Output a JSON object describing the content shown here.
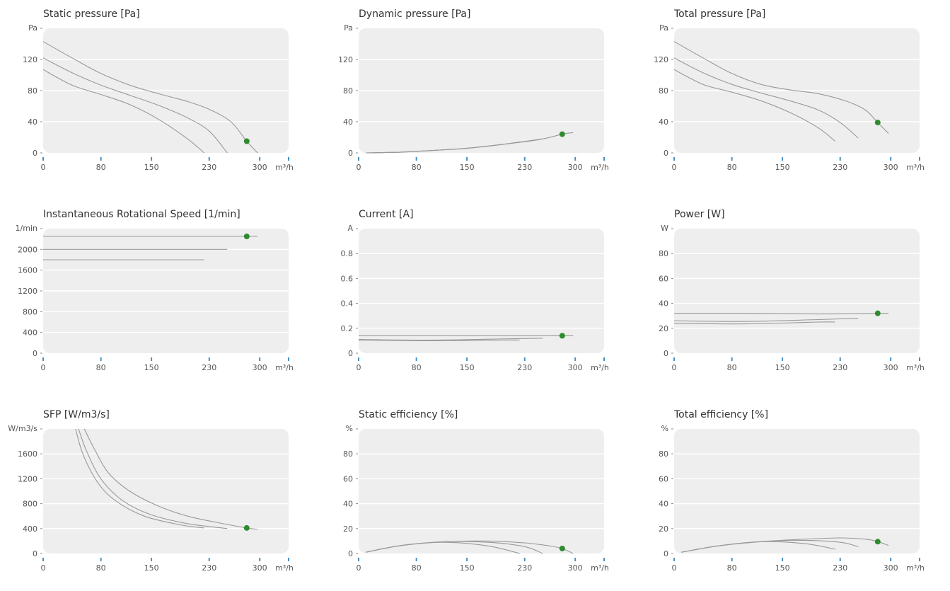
{
  "colors": {
    "plot_bg": "#eeeeee",
    "grid": "#ffffff",
    "curve": "#999999",
    "point": "#2e8b2e",
    "tick_mark": "#4a90c2"
  },
  "x_axis": {
    "ticks": [
      "0",
      "80",
      "150",
      "230",
      "300"
    ],
    "tick_values": [
      0,
      80,
      150,
      230,
      300
    ],
    "unit": "m³/h",
    "range": [
      0,
      340
    ]
  },
  "chart_data": [
    {
      "type": "line",
      "title": "Static pressure [Pa]",
      "y_unit": "Pa",
      "y_ticks": [
        "0",
        "40",
        "80",
        "120"
      ],
      "y_tick_values": [
        0,
        40,
        80,
        120
      ],
      "ylim": [
        0,
        160
      ],
      "series": [
        {
          "x": [
            0,
            40,
            80,
            120,
            160,
            200,
            230,
            260,
            282,
            297
          ],
          "y": [
            143,
            122,
            102,
            87,
            76,
            66,
            56,
            40,
            15,
            0
          ]
        },
        {
          "x": [
            0,
            40,
            80,
            120,
            160,
            200,
            230,
            255
          ],
          "y": [
            122,
            103,
            87,
            74,
            61,
            45,
            28,
            0
          ]
        },
        {
          "x": [
            0,
            40,
            80,
            120,
            160,
            200,
            223
          ],
          "y": [
            107,
            87,
            75,
            62,
            43,
            18,
            0
          ]
        }
      ],
      "operating_point": {
        "x": 282,
        "y": 15
      }
    },
    {
      "type": "line",
      "title": "Dynamic pressure [Pa]",
      "y_unit": "Pa",
      "y_ticks": [
        "0",
        "40",
        "80",
        "120"
      ],
      "y_tick_values": [
        0,
        40,
        80,
        120
      ],
      "ylim": [
        0,
        160
      ],
      "series": [
        {
          "x": [
            10,
            60,
            100,
            150,
            200,
            250,
            282,
            297
          ],
          "y": [
            0,
            1,
            3,
            6,
            11,
            17,
            24,
            26
          ]
        },
        {
          "x": [
            10,
            60,
            100,
            150,
            200,
            255
          ],
          "y": [
            0,
            1,
            3,
            6,
            11,
            18
          ]
        },
        {
          "x": [
            10,
            60,
            100,
            150,
            200,
            223
          ],
          "y": [
            0,
            1,
            3,
            6,
            11,
            14
          ]
        }
      ],
      "operating_point": {
        "x": 282,
        "y": 24
      }
    },
    {
      "type": "line",
      "title": "Total pressure [Pa]",
      "y_unit": "Pa",
      "y_ticks": [
        "0",
        "40",
        "80",
        "120"
      ],
      "y_tick_values": [
        0,
        40,
        80,
        120
      ],
      "ylim": [
        0,
        160
      ],
      "series": [
        {
          "x": [
            0,
            40,
            80,
            120,
            160,
            200,
            240,
            265,
            282,
            297
          ],
          "y": [
            143,
            122,
            102,
            88,
            81,
            76,
            66,
            55,
            39,
            25
          ]
        },
        {
          "x": [
            0,
            40,
            80,
            120,
            160,
            200,
            230,
            255
          ],
          "y": [
            122,
            103,
            88,
            77,
            67,
            55,
            39,
            19
          ]
        },
        {
          "x": [
            0,
            40,
            80,
            120,
            160,
            200,
            223
          ],
          "y": [
            107,
            88,
            78,
            67,
            52,
            32,
            15
          ]
        }
      ],
      "operating_point": {
        "x": 282,
        "y": 39
      }
    },
    {
      "type": "line",
      "title": "Instantaneous Rotational Speed [1/min]",
      "y_unit": "1/min",
      "y_ticks": [
        "0",
        "400",
        "800",
        "1200",
        "1600",
        "2000"
      ],
      "y_tick_values": [
        0,
        400,
        800,
        1200,
        1600,
        2000
      ],
      "ylim": [
        0,
        2400
      ],
      "series": [
        {
          "x": [
            0,
            297
          ],
          "y": [
            2250,
            2250
          ]
        },
        {
          "x": [
            0,
            255
          ],
          "y": [
            2000,
            2000
          ]
        },
        {
          "x": [
            0,
            223
          ],
          "y": [
            1800,
            1800
          ]
        }
      ],
      "operating_point": {
        "x": 282,
        "y": 2250
      }
    },
    {
      "type": "line",
      "title": "Current [A]",
      "y_unit": "A",
      "y_ticks": [
        "0",
        "0.2",
        "0.4",
        "0.6",
        "0.8"
      ],
      "y_tick_values": [
        0,
        0.2,
        0.4,
        0.6,
        0.8
      ],
      "ylim": [
        0,
        1.0
      ],
      "series": [
        {
          "x": [
            0,
            100,
            200,
            297
          ],
          "y": [
            0.14,
            0.14,
            0.14,
            0.14
          ]
        },
        {
          "x": [
            0,
            100,
            200,
            255
          ],
          "y": [
            0.11,
            0.105,
            0.115,
            0.12
          ]
        },
        {
          "x": [
            0,
            100,
            200,
            223
          ],
          "y": [
            0.105,
            0.1,
            0.105,
            0.105
          ]
        }
      ],
      "operating_point": {
        "x": 282,
        "y": 0.14
      }
    },
    {
      "type": "line",
      "title": "Power [W]",
      "y_unit": "W",
      "y_ticks": [
        "0",
        "20",
        "40",
        "60",
        "80"
      ],
      "y_tick_values": [
        0,
        20,
        40,
        60,
        80
      ],
      "ylim": [
        0,
        100
      ],
      "series": [
        {
          "x": [
            0,
            100,
            200,
            297
          ],
          "y": [
            32,
            32,
            31.5,
            32
          ]
        },
        {
          "x": [
            0,
            100,
            200,
            255
          ],
          "y": [
            26,
            25.5,
            27,
            28
          ]
        },
        {
          "x": [
            0,
            100,
            200,
            223
          ],
          "y": [
            24,
            23.5,
            25,
            25
          ]
        }
      ],
      "operating_point": {
        "x": 282,
        "y": 32
      }
    },
    {
      "type": "line",
      "title": "SFP [W/m3/s]",
      "y_unit": "W/m3/s",
      "y_ticks": [
        "0",
        "400",
        "800",
        "1200",
        "1600"
      ],
      "y_tick_values": [
        0,
        400,
        800,
        1200,
        1600
      ],
      "ylim": [
        0,
        2000
      ],
      "series": [
        {
          "x": [
            57,
            70,
            90,
            120,
            160,
            200,
            240,
            282,
            297
          ],
          "y": [
            2000,
            1700,
            1300,
            1000,
            760,
            600,
            500,
            410,
            390
          ]
        },
        {
          "x": [
            49,
            60,
            80,
            110,
            150,
            200,
            255
          ],
          "y": [
            2000,
            1650,
            1200,
            850,
            620,
            480,
            400
          ]
        },
        {
          "x": [
            45,
            55,
            75,
            100,
            140,
            190,
            223
          ],
          "y": [
            2000,
            1600,
            1150,
            850,
            600,
            460,
            410
          ]
        }
      ],
      "operating_point": {
        "x": 282,
        "y": 410
      }
    },
    {
      "type": "line",
      "title": "Static efficiency [%]",
      "y_unit": "%",
      "y_ticks": [
        "0",
        "20",
        "40",
        "60",
        "80"
      ],
      "y_tick_values": [
        0,
        20,
        40,
        60,
        80
      ],
      "ylim": [
        0,
        100
      ],
      "series": [
        {
          "x": [
            10,
            60,
            120,
            180,
            230,
            265,
            282,
            297
          ],
          "y": [
            1,
            6.5,
            9.5,
            10,
            8.5,
            6,
            4,
            0
          ]
        },
        {
          "x": [
            10,
            60,
            120,
            180,
            230,
            255
          ],
          "y": [
            1,
            6.5,
            9.5,
            9,
            5.5,
            0
          ]
        },
        {
          "x": [
            10,
            60,
            120,
            180,
            223
          ],
          "y": [
            1,
            6.5,
            9,
            6,
            0
          ]
        }
      ],
      "operating_point": {
        "x": 282,
        "y": 4
      }
    },
    {
      "type": "line",
      "title": "Total efficiency [%]",
      "y_unit": "%",
      "y_ticks": [
        "0",
        "20",
        "40",
        "60",
        "80"
      ],
      "y_tick_values": [
        0,
        20,
        40,
        60,
        80
      ],
      "ylim": [
        0,
        100
      ],
      "series": [
        {
          "x": [
            10,
            60,
            120,
            180,
            230,
            265,
            282,
            297
          ],
          "y": [
            1,
            6,
            9.5,
            11.5,
            12.5,
            11.5,
            9.5,
            6.5
          ]
        },
        {
          "x": [
            10,
            60,
            120,
            180,
            230,
            255
          ],
          "y": [
            1,
            6,
            9.5,
            10.5,
            9,
            5.5
          ]
        },
        {
          "x": [
            10,
            60,
            120,
            180,
            223
          ],
          "y": [
            1,
            6,
            9.5,
            8,
            3.5
          ]
        }
      ],
      "operating_point": {
        "x": 282,
        "y": 9.5
      }
    }
  ]
}
